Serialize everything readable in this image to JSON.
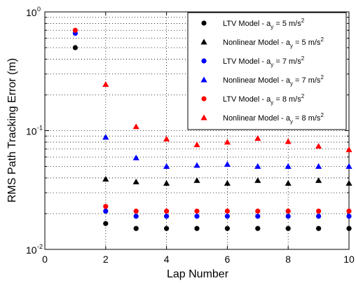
{
  "chart_data": {
    "type": "scatter",
    "xlabel": "Lap Number",
    "ylabel": "RMS Path Tracking Error (m)",
    "xlim": [
      0,
      10
    ],
    "ylim": [
      0.01,
      1
    ],
    "yscale": "log",
    "grid": true,
    "legend_position": "top-right",
    "x_ticks": [
      "0",
      "2",
      "4",
      "6",
      "8",
      "10"
    ],
    "y_ticks": [
      {
        "base": "10",
        "exp": "-2"
      },
      {
        "base": "10",
        "exp": "-1"
      },
      {
        "base": "10",
        "exp": "0"
      }
    ],
    "series": [
      {
        "label": "LTV Model - a",
        "sub": "y",
        "rest": " = 5 m/s",
        "sup": "2",
        "marker": "circle",
        "color": "#000000",
        "x": [
          1,
          2,
          3,
          4,
          5,
          6,
          7,
          8,
          9,
          10
        ],
        "y": [
          0.5,
          0.0165,
          0.015,
          0.015,
          0.015,
          0.015,
          0.015,
          0.015,
          0.015,
          0.015
        ]
      },
      {
        "label": "Nonlinear Model - a",
        "sub": "y",
        "rest": " = 5 m/s",
        "sup": "2",
        "marker": "triangle",
        "color": "#000000",
        "x": [
          2,
          3,
          4,
          5,
          6,
          7,
          8,
          9,
          10
        ],
        "y": [
          0.039,
          0.037,
          0.036,
          0.038,
          0.036,
          0.038,
          0.036,
          0.038,
          0.036
        ]
      },
      {
        "label": "LTV Model - a",
        "sub": "y",
        "rest": " = 7 m/s",
        "sup": "2",
        "marker": "circle",
        "color": "#0000ff",
        "x": [
          1,
          2,
          3,
          4,
          5,
          6,
          7,
          8,
          9,
          10
        ],
        "y": [
          0.66,
          0.021,
          0.019,
          0.019,
          0.019,
          0.019,
          0.019,
          0.019,
          0.019,
          0.019
        ]
      },
      {
        "label": "Nonlinear Model - a",
        "sub": "y",
        "rest": " = 7 m/s",
        "sup": "2",
        "marker": "triangle",
        "color": "#0000ff",
        "x": [
          2,
          3,
          4,
          5,
          6,
          7,
          8,
          9,
          10
        ],
        "y": [
          0.088,
          0.059,
          0.05,
          0.051,
          0.052,
          0.05,
          0.05,
          0.05,
          0.05
        ]
      },
      {
        "label": "LTV Model - a",
        "sub": "y",
        "rest": " = 8 m/s",
        "sup": "2",
        "marker": "circle",
        "color": "#ff0000",
        "x": [
          1,
          2,
          3,
          4,
          5,
          6,
          7,
          8,
          9,
          10
        ],
        "y": [
          0.7,
          0.023,
          0.021,
          0.021,
          0.021,
          0.021,
          0.021,
          0.021,
          0.021,
          0.021
        ]
      },
      {
        "label": "Nonlinear Model - a",
        "sub": "y",
        "rest": " = 8 m/s",
        "sup": "2",
        "marker": "triangle",
        "color": "#ff0000",
        "x": [
          2,
          3,
          4,
          5,
          6,
          7,
          8,
          9,
          10
        ],
        "y": [
          0.245,
          0.108,
          0.085,
          0.076,
          0.08,
          0.086,
          0.081,
          0.074,
          0.069
        ]
      }
    ]
  }
}
